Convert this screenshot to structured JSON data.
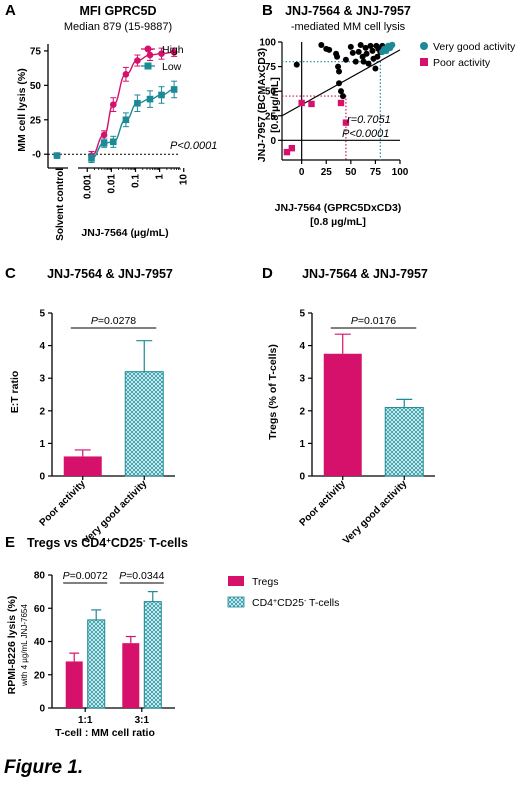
{
  "figure_caption": "Figure 1.",
  "colors": {
    "magenta": "#d6116b",
    "teal": "#1a8a96",
    "black": "#000000",
    "dotted_magenta": "#c2185b",
    "dotted_teal": "#1a8a96"
  },
  "chart_data": [
    {
      "id": "A",
      "type": "line",
      "panel_letter": "A",
      "title": "MFI GPRC5D",
      "subtitle": "Median 879 (15-9887)",
      "xlabel": "JNJ-7564 (µg/mL)",
      "ylabel": "MM cell lysis (%)",
      "x_scale": "log",
      "xlim": [
        0.0005,
        7
      ],
      "ylim": [
        -10,
        80
      ],
      "y_ticks": [
        "-0",
        "25",
        "50",
        "75"
      ],
      "y_tick_values": [
        0,
        25,
        50,
        75
      ],
      "x_ticks": [
        "0.001",
        "0.01",
        "0.1",
        "1",
        "10"
      ],
      "x_tick_values": [
        0.001,
        0.01,
        0.1,
        1,
        10
      ],
      "solvent_label": "Solvent control",
      "annotation": "P<0.0001",
      "baseline": 0,
      "legend": [
        "High",
        "Low"
      ],
      "series": [
        {
          "name": "High",
          "color": "#d6116b",
          "solvent": {
            "y": -1,
            "err": 1
          },
          "x": [
            0.0015,
            0.005,
            0.012,
            0.04,
            0.12,
            0.4,
            1.2,
            4
          ],
          "y": [
            -1,
            14,
            36,
            58,
            68,
            72,
            73,
            74
          ],
          "err": [
            3,
            3,
            5,
            5,
            4,
            4,
            4,
            3
          ]
        },
        {
          "name": "Low",
          "color": "#1a8a96",
          "solvent": {
            "y": -1,
            "err": 1
          },
          "x": [
            0.0015,
            0.005,
            0.012,
            0.04,
            0.12,
            0.4,
            1.2,
            4
          ],
          "y": [
            -3,
            8,
            9,
            25,
            37,
            40,
            43,
            47
          ],
          "err": [
            3,
            3,
            4,
            5,
            6,
            6,
            6,
            6
          ]
        }
      ]
    },
    {
      "id": "B",
      "type": "scatter",
      "panel_letter": "B",
      "title": "JNJ-7564 & JNJ-7957",
      "subtitle": "-mediated MM cell lysis",
      "xlabel_line1": "JNJ-7564 (GPRC5DxCD3)",
      "xlabel_line2": "[0.8 µg/mL]",
      "ylabel_line1": "JNJ-7957 (BCMAxCD3)",
      "ylabel_line2": "[0.8 µg/mL]",
      "xlim": [
        -20,
        100
      ],
      "ylim": [
        -20,
        100
      ],
      "x_ticks": [
        "0",
        "25",
        "50",
        "75",
        "100"
      ],
      "x_tick_values": [
        0,
        25,
        50,
        75,
        100
      ],
      "y_ticks": [
        "0",
        "25",
        "50",
        "75",
        "100"
      ],
      "y_tick_values": [
        0,
        25,
        50,
        75,
        100
      ],
      "annotation_r": "r=0.7051",
      "annotation_p": "P<0.0001",
      "legend": [
        "Very good activity",
        "Poor activity"
      ],
      "regression": {
        "x0": -20,
        "y0": 25,
        "x1": 100,
        "y1": 92
      },
      "ref_lines": {
        "teal_y": 80,
        "teal_x": 80,
        "magenta_y": 45,
        "magenta_x": 45
      },
      "points_other": [
        [
          -5,
          77
        ],
        [
          20,
          97
        ],
        [
          25,
          93
        ],
        [
          28,
          92
        ],
        [
          35,
          88
        ],
        [
          36,
          85
        ],
        [
          37,
          75
        ],
        [
          38,
          70
        ],
        [
          38,
          58
        ],
        [
          40,
          50
        ],
        [
          42,
          45
        ],
        [
          45,
          82
        ],
        [
          50,
          95
        ],
        [
          52,
          89
        ],
        [
          55,
          80
        ],
        [
          58,
          90
        ],
        [
          60,
          97
        ],
        [
          62,
          85
        ],
        [
          63,
          80
        ],
        [
          65,
          94
        ],
        [
          66,
          88
        ],
        [
          68,
          78
        ],
        [
          70,
          96
        ],
        [
          72,
          91
        ],
        [
          73,
          83
        ],
        [
          75,
          73
        ],
        [
          76,
          96
        ],
        [
          77,
          85
        ],
        [
          78,
          93
        ],
        [
          80,
          90
        ],
        [
          82,
          96
        ]
      ],
      "points_very_good": [
        [
          82,
          90
        ],
        [
          84,
          93
        ],
        [
          86,
          91
        ],
        [
          88,
          96
        ],
        [
          90,
          94
        ],
        [
          92,
          97
        ]
      ],
      "points_poor": [
        [
          -15,
          -12
        ],
        [
          -10,
          -8
        ],
        [
          0,
          38
        ],
        [
          10,
          37
        ],
        [
          40,
          38
        ],
        [
          45,
          18
        ]
      ]
    },
    {
      "id": "C",
      "type": "bar",
      "panel_letter": "C",
      "title": "JNJ-7564 & JNJ-7957",
      "ylabel": "E:T ratio",
      "ylim": [
        0,
        5
      ],
      "y_ticks": [
        "0",
        "1",
        "2",
        "3",
        "4",
        "5"
      ],
      "y_tick_values": [
        0,
        1,
        2,
        3,
        4,
        5
      ],
      "categories": [
        "Poor activity",
        "Very good activity"
      ],
      "values": [
        0.6,
        3.2
      ],
      "errors": [
        0.2,
        0.95
      ],
      "styles": [
        "magenta",
        "hatched"
      ],
      "pvalue": "=0.0278",
      "p_prefix": "P"
    },
    {
      "id": "D",
      "type": "bar",
      "panel_letter": "D",
      "title": "JNJ-7564 & JNJ-7957",
      "ylabel": "Tregs (% of T-cells)",
      "ylim": [
        0,
        5
      ],
      "y_ticks": [
        "0",
        "1",
        "2",
        "3",
        "4",
        "5"
      ],
      "y_tick_values": [
        0,
        1,
        2,
        3,
        4,
        5
      ],
      "categories": [
        "Poor activity",
        "Very good activity"
      ],
      "values": [
        3.75,
        2.1
      ],
      "errors": [
        0.6,
        0.25
      ],
      "styles": [
        "magenta",
        "hatched"
      ],
      "pvalue": "=0.0176",
      "p_prefix": "P"
    },
    {
      "id": "E",
      "type": "bar",
      "panel_letter": "E",
      "title_pre": "Tregs vs CD4",
      "title_sup1": "+",
      "title_mid": "CD25",
      "title_sup2": "-",
      "title_post": " T-cells",
      "ylabel_line1": "RPMI-8226 lysis (%)",
      "ylabel_line2": "with 4 µg/mL JNJ-7654",
      "xlabel": "T-cell : MM cell ratio",
      "ylim": [
        0,
        80
      ],
      "y_ticks": [
        "0",
        "20",
        "40",
        "60",
        "80"
      ],
      "y_tick_values": [
        0,
        20,
        40,
        60,
        80
      ],
      "categories": [
        "1:1",
        "3:1"
      ],
      "series": [
        {
          "name": "Tregs",
          "style": "magenta",
          "values": [
            28,
            39
          ],
          "errors": [
            5,
            4
          ]
        },
        {
          "name": "CD4+CD25- T-cells",
          "style": "hatched",
          "values": [
            53,
            64
          ],
          "errors": [
            6,
            6
          ]
        }
      ],
      "legend_tregs": "Tregs",
      "legend_cd4_pre": "CD4",
      "legend_cd4_sup1": "+",
      "legend_cd4_mid": "CD25",
      "legend_cd4_sup2": "-",
      "legend_cd4_post": " T-cells",
      "pvalues": [
        "=0.0072",
        "=0.0344"
      ],
      "p_prefix": "P"
    }
  ]
}
